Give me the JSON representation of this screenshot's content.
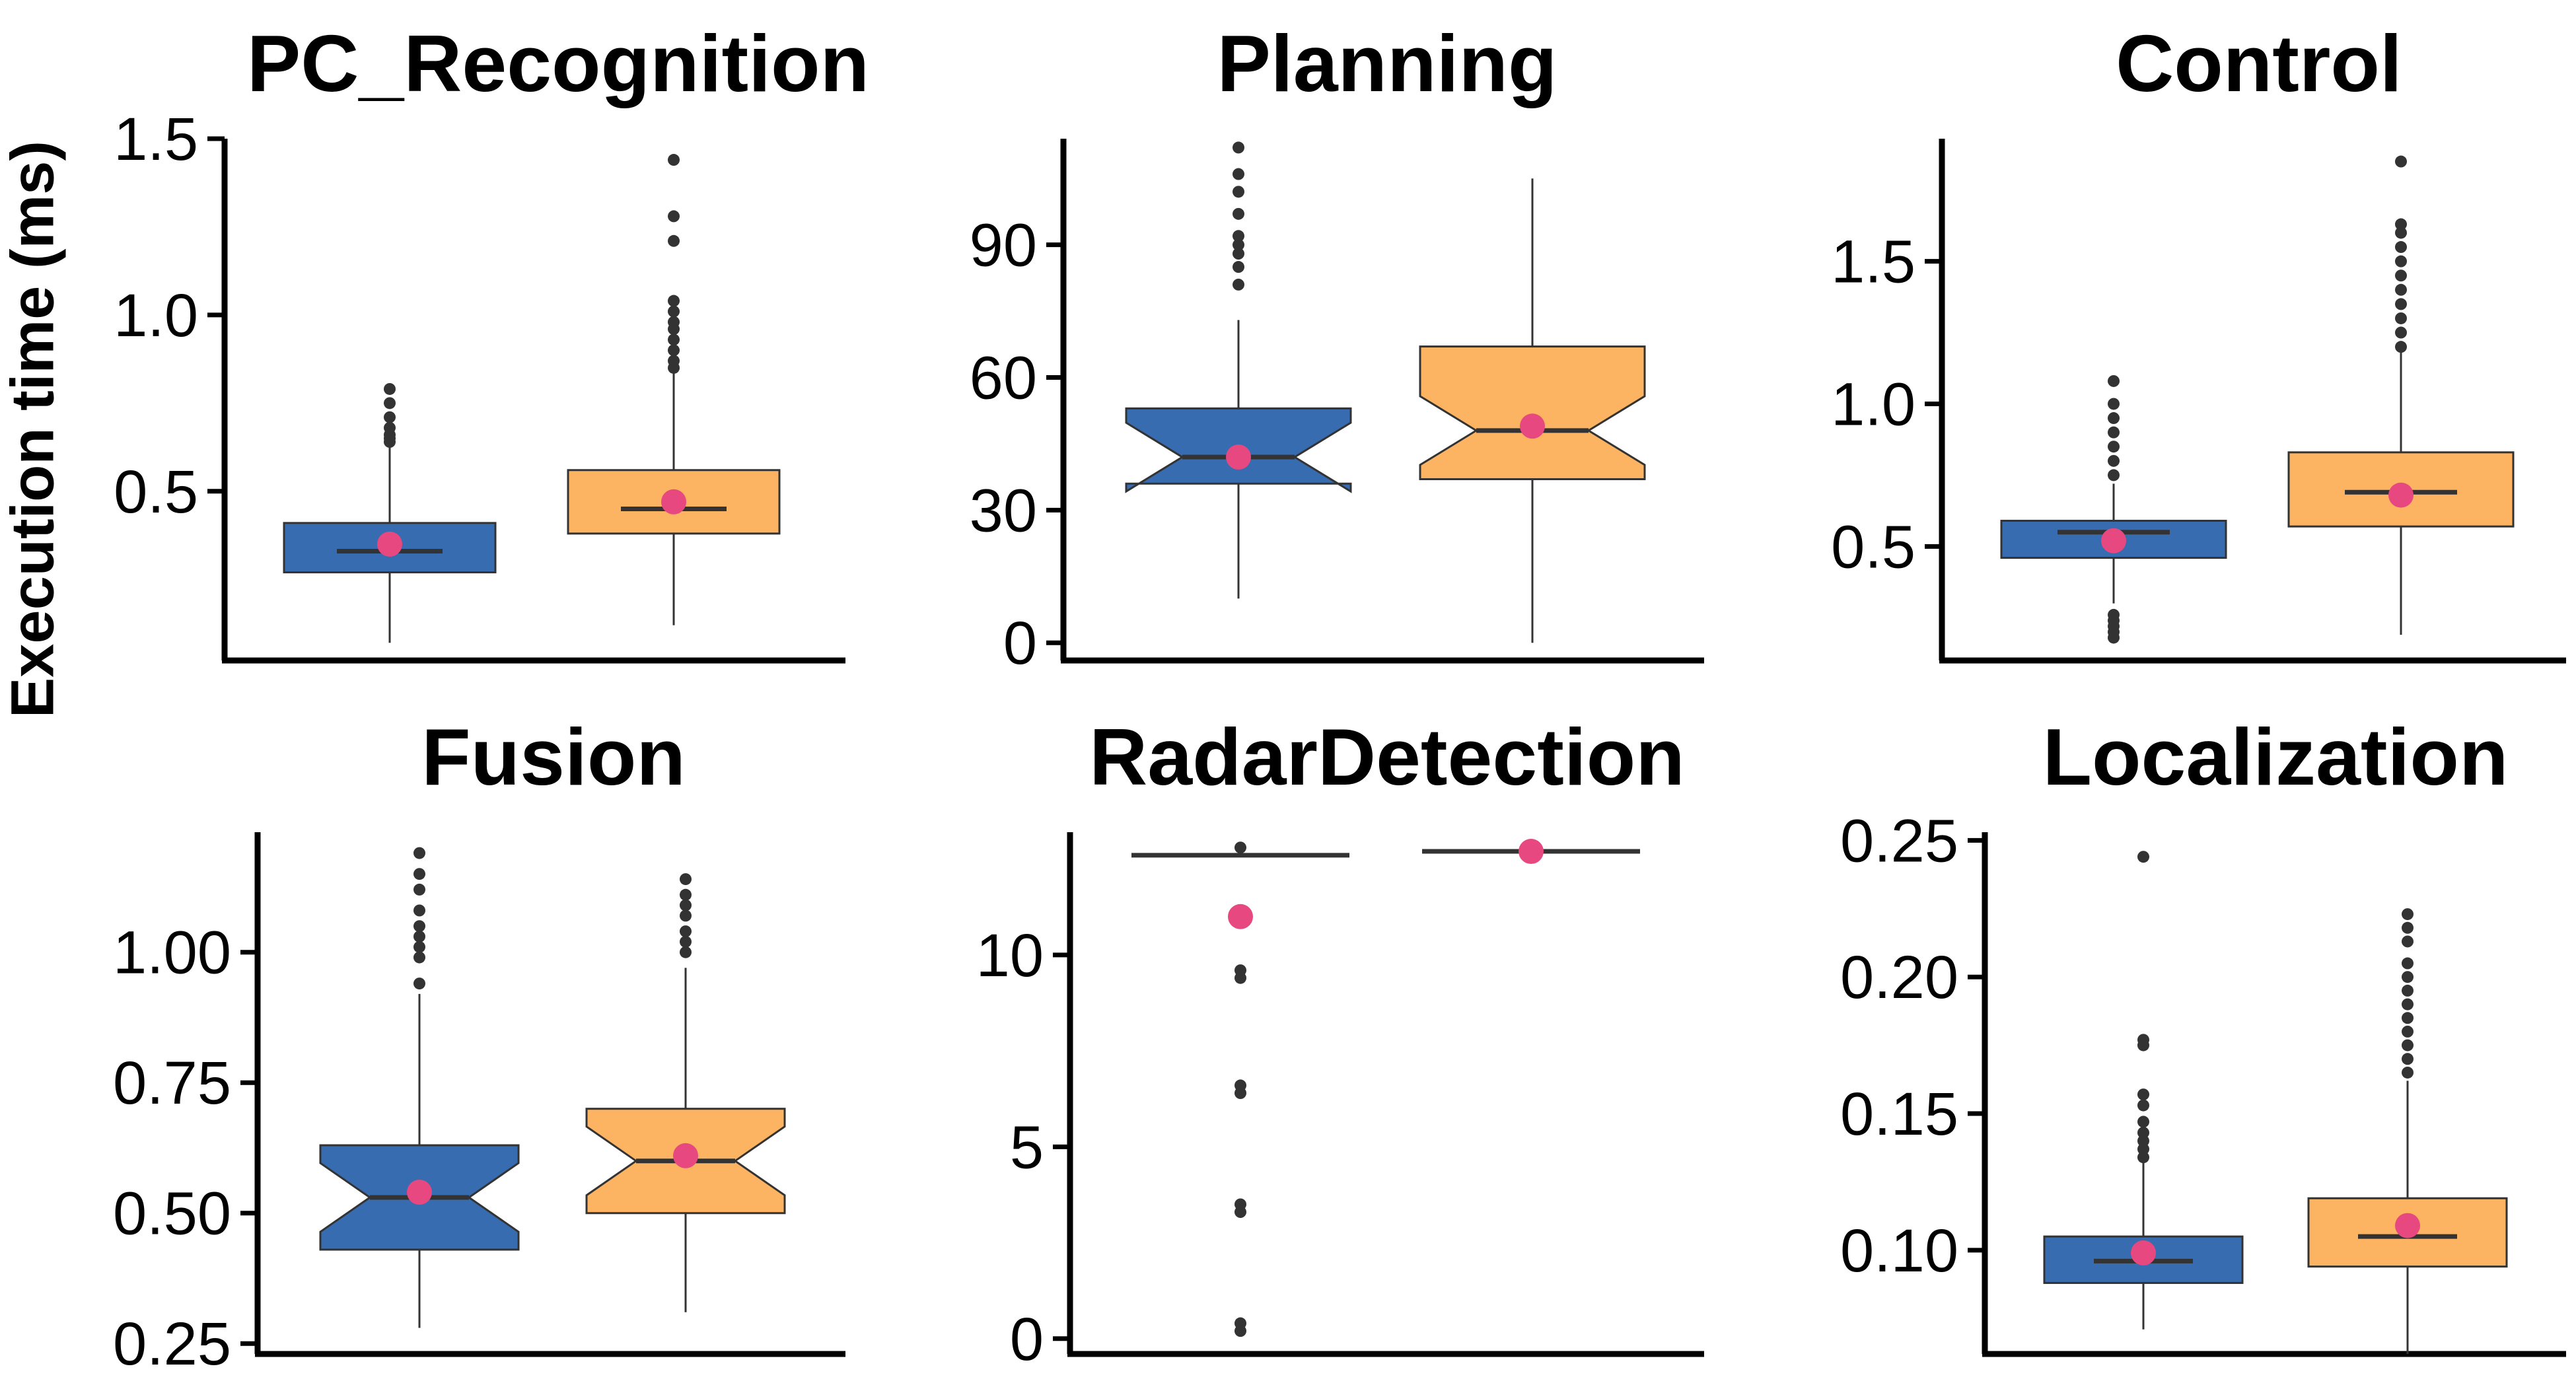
{
  "figure": {
    "ylabel": "Execution time (ms)"
  },
  "colors": {
    "series_a": "#386CB0",
    "series_b": "#FDB462",
    "mean_point": "#E7487F",
    "outlier": "#333333",
    "axis": "#000000"
  },
  "chart_data": [
    {
      "type": "box",
      "title": "PC_Recognition",
      "ylim": [
        0.02,
        1.5
      ],
      "yticks": [
        0.5,
        1.0,
        1.5
      ],
      "ytick_labels": [
        "0.5",
        "1.0",
        "1.5"
      ],
      "notched": false,
      "boxes": [
        {
          "lower_whisker": 0.07,
          "q1": 0.27,
          "median": 0.33,
          "q3": 0.41,
          "upper_whisker": 0.63,
          "mean": 0.35,
          "outliers": [
            0.64,
            0.65,
            0.66,
            0.68,
            0.71,
            0.75,
            0.79
          ]
        },
        {
          "lower_whisker": 0.12,
          "q1": 0.38,
          "median": 0.45,
          "q3": 0.56,
          "upper_whisker": 0.84,
          "mean": 0.47,
          "outliers": [
            0.85,
            0.87,
            0.9,
            0.93,
            0.96,
            0.98,
            1.01,
            1.04,
            1.21,
            1.28,
            1.44
          ]
        }
      ]
    },
    {
      "type": "box",
      "title": "Planning",
      "ylim": [
        -4,
        114
      ],
      "yticks": [
        0,
        30,
        60,
        90
      ],
      "ytick_labels": [
        "0",
        "30",
        "60",
        "90"
      ],
      "notched": true,
      "boxes": [
        {
          "lower_whisker": 10,
          "q1": 36,
          "median": 42,
          "q3": 53,
          "upper_whisker": 73,
          "mean": 42,
          "outliers": [
            81,
            85,
            88,
            90,
            92,
            97,
            102,
            106,
            112
          ]
        },
        {
          "lower_whisker": 0,
          "q1": 37,
          "median": 48,
          "q3": 67,
          "upper_whisker": 105,
          "mean": 49,
          "outliers": []
        }
      ]
    },
    {
      "type": "box",
      "title": "Control",
      "ylim": [
        0.1,
        1.93
      ],
      "yticks": [
        0.5,
        1.0,
        1.5
      ],
      "ytick_labels": [
        "0.5",
        "1.0",
        "1.5"
      ],
      "notched": false,
      "boxes": [
        {
          "lower_whisker": 0.3,
          "q1": 0.46,
          "median": 0.55,
          "q3": 0.59,
          "upper_whisker": 0.72,
          "mean": 0.52,
          "outliers": [
            0.18,
            0.2,
            0.22,
            0.24,
            0.26,
            0.75,
            0.8,
            0.85,
            0.9,
            0.95,
            1.0,
            1.08
          ]
        },
        {
          "lower_whisker": 0.19,
          "q1": 0.57,
          "median": 0.69,
          "q3": 0.83,
          "upper_whisker": 1.18,
          "mean": 0.68,
          "outliers": [
            1.2,
            1.25,
            1.3,
            1.35,
            1.4,
            1.45,
            1.5,
            1.55,
            1.6,
            1.63,
            1.85
          ]
        }
      ]
    },
    {
      "type": "box",
      "title": "Fusion",
      "ylim": [
        0.23,
        1.23
      ],
      "yticks": [
        0.25,
        0.5,
        0.75,
        1.0
      ],
      "ytick_labels": [
        "0.25",
        "0.50",
        "0.75",
        "1.00"
      ],
      "notched": true,
      "boxes": [
        {
          "lower_whisker": 0.28,
          "q1": 0.43,
          "median": 0.53,
          "q3": 0.63,
          "upper_whisker": 0.92,
          "mean": 0.54,
          "outliers": [
            0.94,
            0.99,
            1.01,
            1.03,
            1.05,
            1.08,
            1.12,
            1.15,
            1.19
          ]
        },
        {
          "lower_whisker": 0.31,
          "q1": 0.5,
          "median": 0.6,
          "q3": 0.7,
          "upper_whisker": 0.97,
          "mean": 0.61,
          "outliers": [
            1.0,
            1.02,
            1.04,
            1.07,
            1.09,
            1.11,
            1.14
          ]
        }
      ]
    },
    {
      "type": "box",
      "title": "RadarDetection",
      "ylim": [
        -0.4,
        13.2
      ],
      "yticks": [
        0,
        5,
        10
      ],
      "ytick_labels": [
        "0",
        "5",
        "10"
      ],
      "notched": false,
      "boxes": [
        {
          "lower_whisker": 12.6,
          "q1": 12.6,
          "median": 12.6,
          "q3": 12.6,
          "upper_whisker": 12.6,
          "mean": 11.0,
          "outliers": [
            0.2,
            0.4,
            3.3,
            3.5,
            6.4,
            6.6,
            9.4,
            9.6,
            12.8
          ]
        },
        {
          "lower_whisker": 12.7,
          "q1": 12.7,
          "median": 12.7,
          "q3": 12.7,
          "upper_whisker": 12.7,
          "mean": 12.7,
          "outliers": []
        }
      ]
    },
    {
      "type": "box",
      "title": "Localization",
      "ylim": [
        0.062,
        0.253
      ],
      "yticks": [
        0.1,
        0.15,
        0.2,
        0.25
      ],
      "ytick_labels": [
        "0.10",
        "0.15",
        "0.20",
        "0.25"
      ],
      "notched": false,
      "boxes": [
        {
          "lower_whisker": 0.071,
          "q1": 0.088,
          "median": 0.096,
          "q3": 0.105,
          "upper_whisker": 0.132,
          "mean": 0.099,
          "outliers": [
            0.134,
            0.137,
            0.14,
            0.143,
            0.147,
            0.153,
            0.157,
            0.175,
            0.177,
            0.244
          ]
        },
        {
          "lower_whisker": 0.062,
          "q1": 0.094,
          "median": 0.105,
          "q3": 0.119,
          "upper_whisker": 0.162,
          "mean": 0.109,
          "outliers": [
            0.165,
            0.17,
            0.175,
            0.18,
            0.185,
            0.19,
            0.195,
            0.2,
            0.205,
            0.213,
            0.218,
            0.223
          ]
        }
      ]
    }
  ]
}
